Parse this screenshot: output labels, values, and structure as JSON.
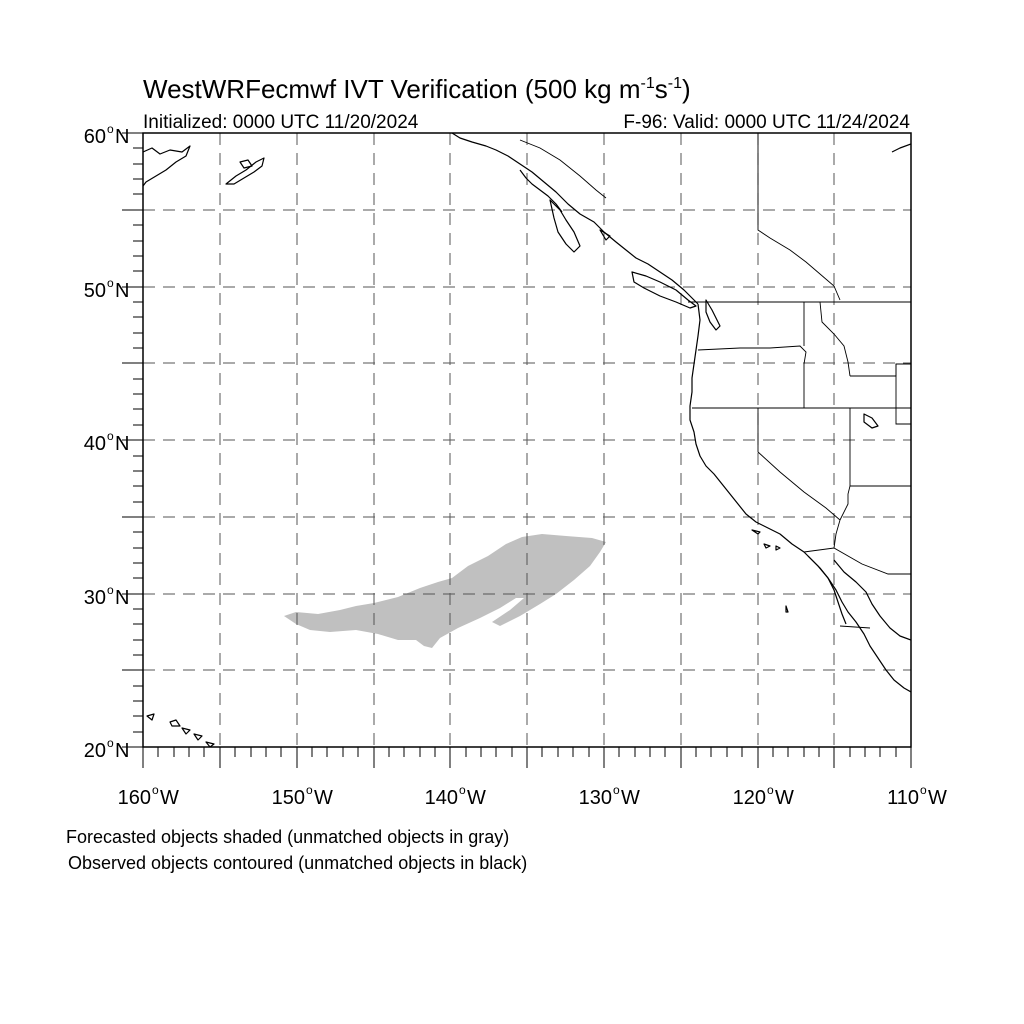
{
  "title": {
    "main": "WestWRFecmwf IVT Verification (500 kg m",
    "exp1": "-1",
    "mid": "s",
    "exp2": "-1",
    "close": ")"
  },
  "subtitle": {
    "left": "Initialized: 0000 UTC 11/20/2024",
    "right": "F-96: Valid: 0000 UTC 11/24/2024"
  },
  "lat_labels": [
    {
      "deg": "60",
      "unit": "N"
    },
    {
      "deg": "50",
      "unit": "N"
    },
    {
      "deg": "40",
      "unit": "N"
    },
    {
      "deg": "30",
      "unit": "N"
    },
    {
      "deg": "20",
      "unit": "N"
    }
  ],
  "lon_labels": [
    {
      "deg": "160",
      "unit": "W"
    },
    {
      "deg": "150",
      "unit": "W"
    },
    {
      "deg": "140",
      "unit": "W"
    },
    {
      "deg": "130",
      "unit": "W"
    },
    {
      "deg": "120",
      "unit": "W"
    },
    {
      "deg": "110",
      "unit": "W"
    }
  ],
  "legend": {
    "line1": "Forecasted objects shaded (unmatched objects in gray)",
    "line2": "Observed objects contoured (unmatched objects in black)"
  },
  "map": {
    "lon_range": [
      -160,
      -110
    ],
    "lat_range": [
      20,
      60
    ],
    "grid_spacing_deg": 5,
    "grid_style": "dashed",
    "projection": "cylindrical equidistant"
  },
  "colors": {
    "forecast_unmatched": "#c0c0c0",
    "coastline": "#000000",
    "grid": "#555555"
  }
}
